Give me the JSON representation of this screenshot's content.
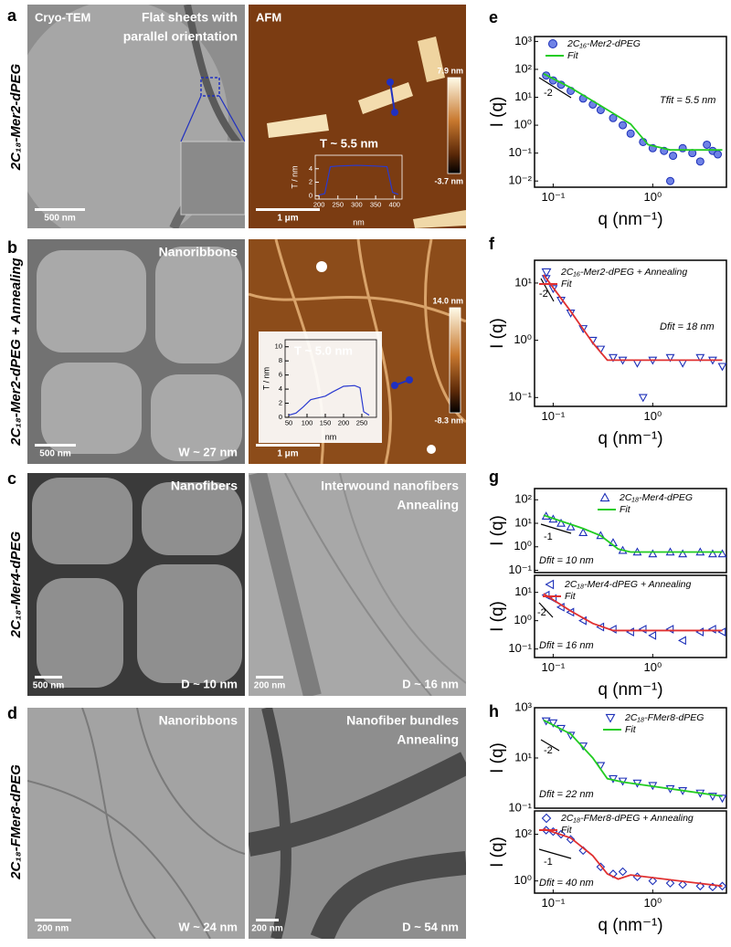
{
  "panels": [
    {
      "letter": "a",
      "row_label": "2C₁₈-Mer2-dPEG",
      "tem": {
        "title": "Cryo-TEM",
        "caption": [
          "Flat sheets with",
          "parallel orientation"
        ],
        "scale_bar": "500 nm"
      },
      "afm": {
        "title": "AFM",
        "color_max": "7.9 nm",
        "color_min": "-3.7 nm",
        "scale_bar": "1 μm"
      }
    },
    {
      "letter": "b",
      "row_label": "2C₁₈-Mer2-dPEG + Annealing",
      "tem": {
        "caption": [
          "Nanoribbons"
        ],
        "size": "W ~ 27 nm",
        "scale_bar": "500 nm"
      },
      "afm": {
        "color_max": "14.0 nm",
        "color_min": "-8.3 nm",
        "scale_bar": "1 μm"
      }
    },
    {
      "letter": "c",
      "row_label": "2C₁₈-Mer4-dPEG",
      "tem": {
        "caption": [
          "Nanofibers"
        ],
        "size": "D ~ 10 nm",
        "scale_bar": "500 nm"
      },
      "tem2": {
        "caption": [
          "Interwound nanofibers",
          "Annealing"
        ],
        "size": "D ~ 16 nm",
        "scale_bar": "200 nm"
      }
    },
    {
      "letter": "d",
      "row_label": "2C₁₈-FMer8-dPEG",
      "tem": {
        "caption": [
          "Nanoribbons"
        ],
        "size": "W ~ 24 nm",
        "scale_bar": "200 nm"
      },
      "tem2": {
        "caption": [
          "Nanofiber bundles",
          "Annealing"
        ],
        "size": "D ~ 54 nm",
        "scale_bar": "200 nm"
      }
    }
  ],
  "chart_data": [
    {
      "type": "scatter",
      "letter": "e",
      "log_x": true,
      "log_y": true,
      "xlabel": "q (nm⁻¹)",
      "ylabel": "I (q)",
      "xlim": [
        0.065,
        5.5
      ],
      "ylim": [
        0.006,
        1500
      ],
      "xticks": [
        {
          "value": 0.1,
          "label": "10⁻¹"
        },
        {
          "value": 1,
          "label": "10⁰"
        }
      ],
      "yticks": [
        {
          "value": 0.01,
          "label": "10⁻²"
        },
        {
          "value": 0.1,
          "label": "10⁻¹"
        },
        {
          "value": 1,
          "label": "10⁰"
        },
        {
          "value": 10,
          "label": "10¹"
        },
        {
          "value": 100,
          "label": "10²"
        },
        {
          "value": 1000,
          "label": "10³"
        }
      ],
      "annotations": [
        "-2",
        "Tfit = 5.5 nm"
      ],
      "series": [
        {
          "name": "2C₁₆-Mer2-dPEG",
          "kind": "markers",
          "marker": "circle",
          "color": "#1c2fb8",
          "fill": "#6f82e6",
          "x": [
            0.085,
            0.1,
            0.12,
            0.15,
            0.2,
            0.25,
            0.3,
            0.4,
            0.5,
            0.6,
            0.8,
            1.0,
            1.3,
            1.5,
            1.6,
            2,
            2.5,
            3,
            3.5,
            4,
            4.5
          ],
          "values": [
            60,
            40,
            28,
            17,
            9,
            5.5,
            3.5,
            1.8,
            1,
            0.5,
            0.25,
            0.15,
            0.12,
            0.01,
            0.08,
            0.15,
            0.1,
            0.05,
            0.2,
            0.12,
            0.09
          ]
        },
        {
          "name": "Fit",
          "kind": "line",
          "color": "#22cc22",
          "x": [
            0.08,
            0.15,
            0.3,
            0.6,
            0.9,
            1.5,
            5
          ],
          "values": [
            70,
            22,
            5,
            1.1,
            0.2,
            0.13,
            0.13
          ]
        }
      ]
    },
    {
      "type": "scatter",
      "letter": "f",
      "log_x": true,
      "log_y": true,
      "xlabel": "q (nm⁻¹)",
      "ylabel": "I (q)",
      "xlim": [
        0.065,
        5.5
      ],
      "ylim": [
        0.07,
        25
      ],
      "xticks": [
        {
          "value": 0.1,
          "label": "10⁻¹"
        },
        {
          "value": 1,
          "label": "10⁰"
        }
      ],
      "yticks": [
        {
          "value": 0.1,
          "label": "10⁻¹"
        },
        {
          "value": 1,
          "label": "10⁰"
        },
        {
          "value": 10,
          "label": "10¹"
        }
      ],
      "annotations": [
        "-2",
        "Dfit = 18 nm"
      ],
      "series": [
        {
          "name": "2C₁₆-Mer2-dPEG + Annealing",
          "kind": "markers",
          "marker": "tri-down",
          "color": "#1c2fb8",
          "x": [
            0.085,
            0.1,
            0.12,
            0.15,
            0.2,
            0.25,
            0.3,
            0.4,
            0.5,
            0.7,
            0.8,
            1,
            1.5,
            2,
            3,
            4,
            5
          ],
          "values": [
            12,
            8,
            5,
            3,
            1.6,
            1,
            0.7,
            0.5,
            0.45,
            0.4,
            0.1,
            0.45,
            0.5,
            0.4,
            0.5,
            0.45,
            0.35
          ]
        },
        {
          "name": "Fit",
          "kind": "line",
          "color": "#e03030",
          "x": [
            0.08,
            0.15,
            0.25,
            0.35,
            0.5,
            5
          ],
          "values": [
            14,
            3.2,
            0.9,
            0.45,
            0.45,
            0.45
          ]
        }
      ]
    },
    {
      "type": "scatter",
      "letter": "g",
      "log_x": true,
      "log_y": true,
      "ylabel": "I (q)",
      "xlim": [
        0.065,
        5.5
      ],
      "ylim": [
        0.08,
        300
      ],
      "yticks": [
        {
          "value": 0.1,
          "label": "10⁻¹"
        },
        {
          "value": 1,
          "label": "10⁰"
        },
        {
          "value": 10,
          "label": "10¹"
        },
        {
          "value": 100,
          "label": "10²"
        }
      ],
      "annotations": [
        "-1",
        "Dfit = 10 nm"
      ],
      "series": [
        {
          "name": "2C₁₈-Mer4-dPEG",
          "kind": "markers",
          "marker": "tri-up",
          "color": "#1c2fb8",
          "x": [
            0.085,
            0.1,
            0.12,
            0.15,
            0.2,
            0.3,
            0.4,
            0.5,
            0.7,
            1,
            1.5,
            2,
            3,
            4,
            5
          ],
          "values": [
            20,
            15,
            10,
            7,
            4,
            3,
            1.5,
            0.7,
            0.6,
            0.5,
            0.6,
            0.5,
            0.6,
            0.5,
            0.5
          ]
        },
        {
          "name": "Fit",
          "kind": "line",
          "color": "#22cc22",
          "x": [
            0.08,
            0.2,
            0.3,
            0.45,
            0.6,
            5
          ],
          "values": [
            22,
            6,
            3,
            0.8,
            0.6,
            0.6
          ]
        }
      ]
    },
    {
      "type": "scatter",
      "log_x": true,
      "log_y": true,
      "xlabel": "q (nm⁻¹)",
      "ylabel": "I (q)",
      "xlim": [
        0.065,
        5.5
      ],
      "ylim": [
        0.05,
        40
      ],
      "xticks": [
        {
          "value": 0.1,
          "label": "10⁻¹"
        },
        {
          "value": 1,
          "label": "10⁰"
        }
      ],
      "yticks": [
        {
          "value": 0.1,
          "label": "10⁻¹"
        },
        {
          "value": 1,
          "label": "10⁰"
        },
        {
          "value": 10,
          "label": "10¹"
        }
      ],
      "annotations": [
        "-2",
        "Dfit = 16 nm"
      ],
      "series": [
        {
          "name": "2C₁₈-Mer4-dPEG + Annealing",
          "kind": "markers",
          "marker": "tri-left",
          "color": "#1c2fb8",
          "x": [
            0.085,
            0.1,
            0.12,
            0.15,
            0.2,
            0.3,
            0.4,
            0.6,
            0.8,
            1,
            1.5,
            2,
            3,
            4,
            5
          ],
          "values": [
            8,
            6,
            3,
            2,
            1,
            0.6,
            0.5,
            0.4,
            0.5,
            0.3,
            0.5,
            0.2,
            0.4,
            0.5,
            0.4
          ]
        },
        {
          "name": "Fit",
          "kind": "line",
          "color": "#e03030",
          "x": [
            0.08,
            0.15,
            0.25,
            0.4,
            5
          ],
          "values": [
            9,
            2.2,
            0.8,
            0.45,
            0.45
          ]
        }
      ]
    },
    {
      "type": "scatter",
      "letter": "h",
      "log_x": true,
      "log_y": true,
      "ylabel": "I (q)",
      "xlim": [
        0.065,
        5.5
      ],
      "ylim": [
        0.1,
        1000
      ],
      "yticks": [
        {
          "value": 0.1,
          "label": "10⁻¹"
        },
        {
          "value": 10,
          "label": "10¹"
        },
        {
          "value": 1000,
          "label": "10³"
        }
      ],
      "annotations": [
        "-2",
        "Dfit = 22 nm"
      ],
      "series": [
        {
          "name": "2C₁₈-FMer8-dPEG",
          "kind": "markers",
          "marker": "tri-down",
          "color": "#1c2fb8",
          "x": [
            0.085,
            0.1,
            0.12,
            0.15,
            0.2,
            0.3,
            0.4,
            0.5,
            0.7,
            1,
            1.5,
            2,
            3,
            4,
            5
          ],
          "values": [
            300,
            250,
            150,
            80,
            30,
            5,
            1.5,
            1.2,
            1,
            0.8,
            0.6,
            0.5,
            0.4,
            0.3,
            0.25
          ]
        },
        {
          "name": "Fit",
          "kind": "line",
          "color": "#22cc22",
          "x": [
            0.08,
            0.15,
            0.25,
            0.35,
            0.5,
            5
          ],
          "values": [
            320,
            90,
            10,
            1.5,
            1.1,
            0.3
          ]
        }
      ]
    },
    {
      "type": "scatter",
      "log_x": true,
      "log_y": true,
      "xlabel": "q (nm⁻¹)",
      "ylabel": "I (q)",
      "xlim": [
        0.065,
        5.5
      ],
      "ylim": [
        0.3,
        1000
      ],
      "xticks": [
        {
          "value": 0.1,
          "label": "10⁻¹"
        },
        {
          "value": 1,
          "label": "10⁰"
        }
      ],
      "yticks": [
        {
          "value": 1,
          "label": "10⁰"
        },
        {
          "value": 100,
          "label": "10²"
        }
      ],
      "annotations": [
        "-1",
        "Dfit = 40 nm"
      ],
      "series": [
        {
          "name": "2C₁₈-FMer8-dPEG + Annealing",
          "kind": "markers",
          "marker": "diamond",
          "color": "#1c2fb8",
          "x": [
            0.085,
            0.1,
            0.12,
            0.15,
            0.2,
            0.3,
            0.4,
            0.5,
            0.7,
            1,
            1.5,
            2,
            3,
            4,
            5
          ],
          "values": [
            150,
            130,
            100,
            60,
            20,
            4,
            2,
            2.5,
            1.5,
            1,
            0.8,
            0.7,
            0.6,
            0.55,
            0.6
          ]
        },
        {
          "name": "Fit",
          "kind": "line",
          "color": "#e03030",
          "x": [
            0.08,
            0.15,
            0.25,
            0.35,
            0.45,
            0.6,
            5
          ],
          "values": [
            170,
            70,
            12,
            2,
            1.2,
            1.8,
            0.6
          ]
        }
      ]
    },
    {
      "type": "line",
      "xlabel": "nm",
      "ylabel": "T / nm",
      "xlim": [
        190,
        420
      ],
      "ylim": [
        -0.5,
        6
      ],
      "xticks": [
        200,
        250,
        300,
        350,
        400
      ],
      "yticks": [
        0,
        2,
        4
      ],
      "annotations": [
        "T ~ 5.5 nm"
      ],
      "series": [
        {
          "kind": "line",
          "color": "#2a3ad0",
          "x": [
            200,
            215,
            230,
            250,
            300,
            350,
            380,
            395,
            410
          ],
          "values": [
            0.1,
            0.3,
            4.3,
            4.4,
            4.5,
            4.4,
            4.3,
            0.5,
            0.2
          ]
        }
      ]
    },
    {
      "type": "line",
      "xlabel": "nm",
      "ylabel": "T / nm",
      "xlim": [
        40,
        290
      ],
      "ylim": [
        0,
        11
      ],
      "xticks": [
        50,
        100,
        150,
        200,
        250
      ],
      "yticks": [
        0,
        2,
        4,
        6,
        8,
        10
      ],
      "annotations": [
        "T ~ 5.0 nm"
      ],
      "series": [
        {
          "kind": "line",
          "color": "#2a3ad0",
          "x": [
            50,
            70,
            90,
            110,
            150,
            170,
            200,
            230,
            245,
            255,
            270
          ],
          "values": [
            0.3,
            0.6,
            1.5,
            2.5,
            3,
            3.6,
            4.4,
            4.5,
            4.2,
            0.8,
            0.3
          ]
        }
      ]
    }
  ]
}
